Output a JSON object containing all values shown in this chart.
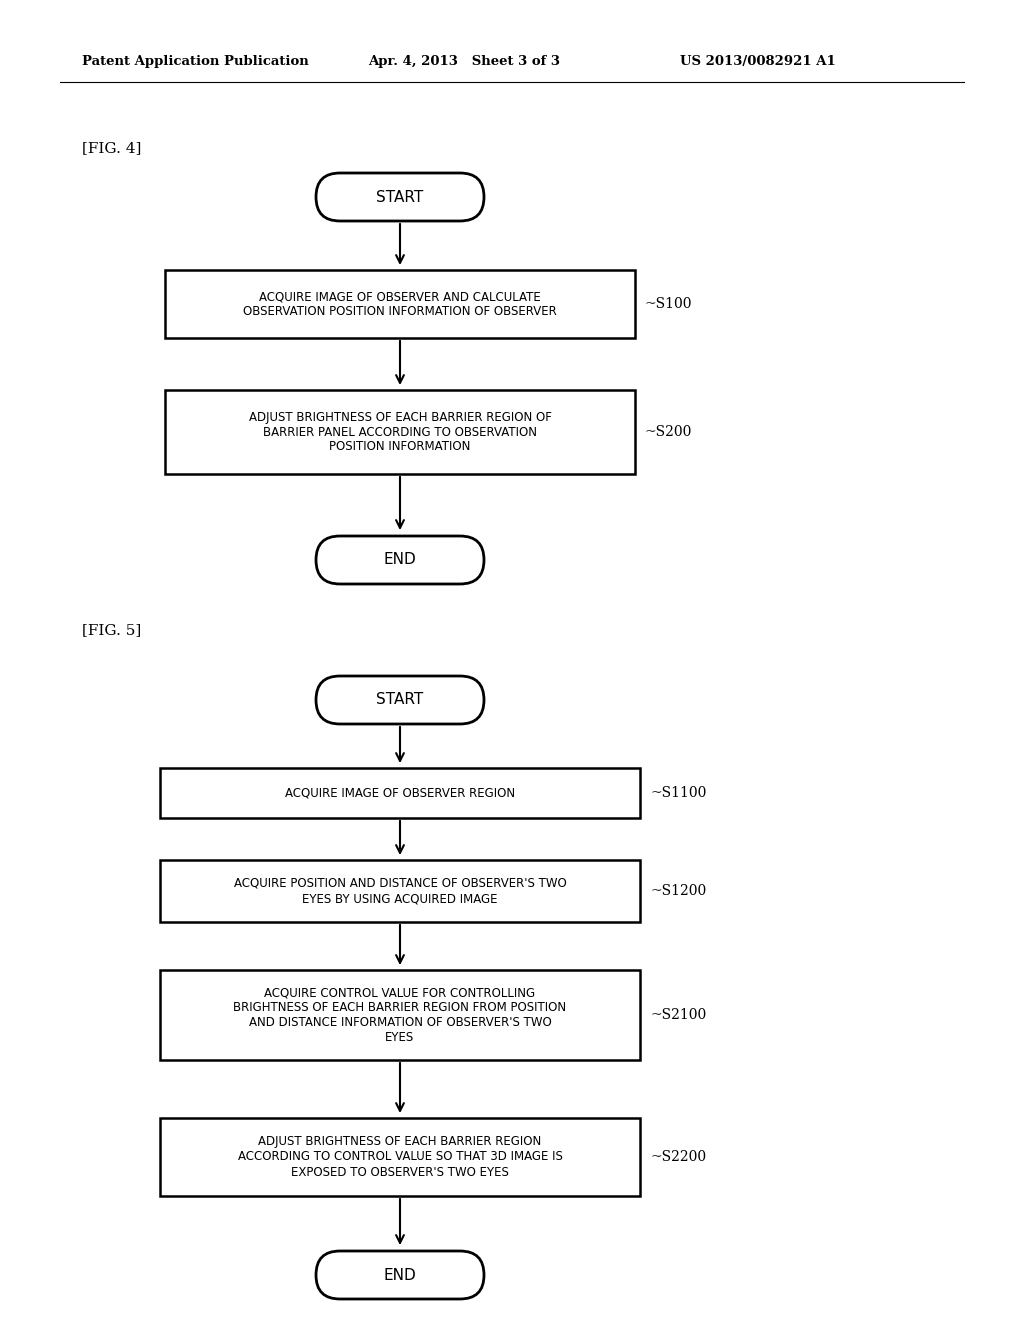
{
  "bg_color": "#ffffff",
  "header_left": "Patent Application Publication",
  "header_mid": "Apr. 4, 2013   Sheet 3 of 3",
  "header_right": "US 2013/0082921 A1",
  "fig4_label": "[FIG. 4]",
  "fig5_label": "[FIG. 5]",
  "fig4": {
    "start_label": "START",
    "end_label": "END",
    "boxes": [
      {
        "text": "ACQUIRE IMAGE OF OBSERVER AND CALCULATE\nOBSERVATION POSITION INFORMATION OF OBSERVER",
        "label": "~S100"
      },
      {
        "text": "ADJUST BRIGHTNESS OF EACH BARRIER REGION OF\nBARRIER PANEL ACCORDING TO OBSERVATION\nPOSITION INFORMATION",
        "label": "~S200"
      }
    ]
  },
  "fig5": {
    "start_label": "START",
    "end_label": "END",
    "boxes": [
      {
        "text": "ACQUIRE IMAGE OF OBSERVER REGION",
        "label": "~S1100"
      },
      {
        "text": "ACQUIRE POSITION AND DISTANCE OF OBSERVER'S TWO\nEYES BY USING ACQUIRED IMAGE",
        "label": "~S1200"
      },
      {
        "text": "ACQUIRE CONTROL VALUE FOR CONTROLLING\nBRIGHTNESS OF EACH BARRIER REGION FROM POSITION\nAND DISTANCE INFORMATION OF OBSERVER'S TWO\nEYES",
        "label": "~S2100"
      },
      {
        "text": "ADJUST BRIGHTNESS OF EACH BARRIER REGION\nACCORDING TO CONTROL VALUE SO THAT 3D IMAGE IS\nEXPOSED TO OBSERVER'S TWO EYES",
        "label": "~S2200"
      }
    ]
  }
}
